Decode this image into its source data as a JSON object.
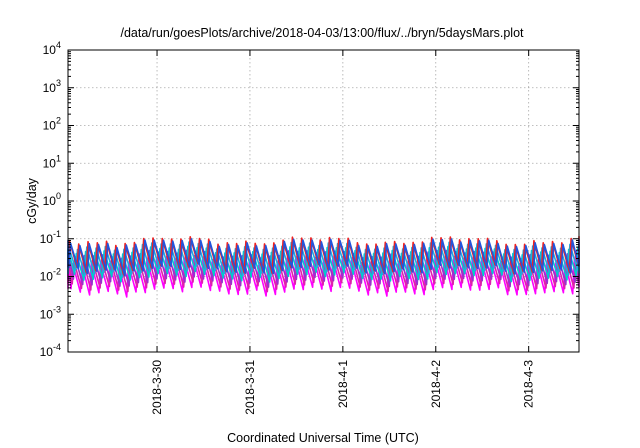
{
  "chart_data": {
    "type": "line",
    "title": "/data/run/goesPlots/archive/2018-04-03/13:00/flux/../bryn/5daysMars.plot",
    "xlabel": "Coordinated Universal Time (UTC)",
    "ylabel": "cGy/day",
    "y_scale": "log",
    "ylim": [
      0.0001,
      10000
    ],
    "y_ticks": [
      {
        "value": 0.0001,
        "base": "10",
        "exp": "-4"
      },
      {
        "value": 0.001,
        "base": "10",
        "exp": "-3"
      },
      {
        "value": 0.01,
        "base": "10",
        "exp": "-2"
      },
      {
        "value": 0.1,
        "base": "10",
        "exp": "-1"
      },
      {
        "value": 1,
        "base": "10",
        "exp": "0"
      },
      {
        "value": 10,
        "base": "10",
        "exp": "1"
      },
      {
        "value": 100,
        "base": "10",
        "exp": "2"
      },
      {
        "value": 1000,
        "base": "10",
        "exp": "3"
      },
      {
        "value": 10000,
        "base": "10",
        "exp": "4"
      }
    ],
    "xlim": [
      "2018-03-29T01:00",
      "2018-04-03T13:00"
    ],
    "x_ticks": [
      {
        "value": "2018-03-30T00:00",
        "label": "2018-3-30"
      },
      {
        "value": "2018-03-31T00:00",
        "label": "2018-3-31"
      },
      {
        "value": "2018-04-01T00:00",
        "label": "2018-4-1"
      },
      {
        "value": "2018-04-02T00:00",
        "label": "2018-4-2"
      },
      {
        "value": "2018-04-03T00:00",
        "label": "2018-4-3"
      }
    ],
    "grid": true,
    "legend": "none",
    "pattern": "sawtooth, ~10 cycles per day",
    "series": [
      {
        "color": "#ff00ff",
        "peak_level": 0.025,
        "trough_level": 0.0045
      },
      {
        "color": "#dd22aa",
        "peak_level": 0.03,
        "trough_level": 0.006
      },
      {
        "color": "#9933cc",
        "peak_level": 0.04,
        "trough_level": 0.008
      },
      {
        "color": "#00cccc",
        "peak_level": 0.05,
        "trough_level": 0.011
      },
      {
        "color": "#22aadd",
        "peak_level": 0.065,
        "trough_level": 0.015
      },
      {
        "color": "#ee2222",
        "peak_level": 0.09,
        "trough_level": 0.018
      },
      {
        "color": "#2255dd",
        "peak_level": 0.08,
        "trough_level": 0.017
      }
    ]
  }
}
